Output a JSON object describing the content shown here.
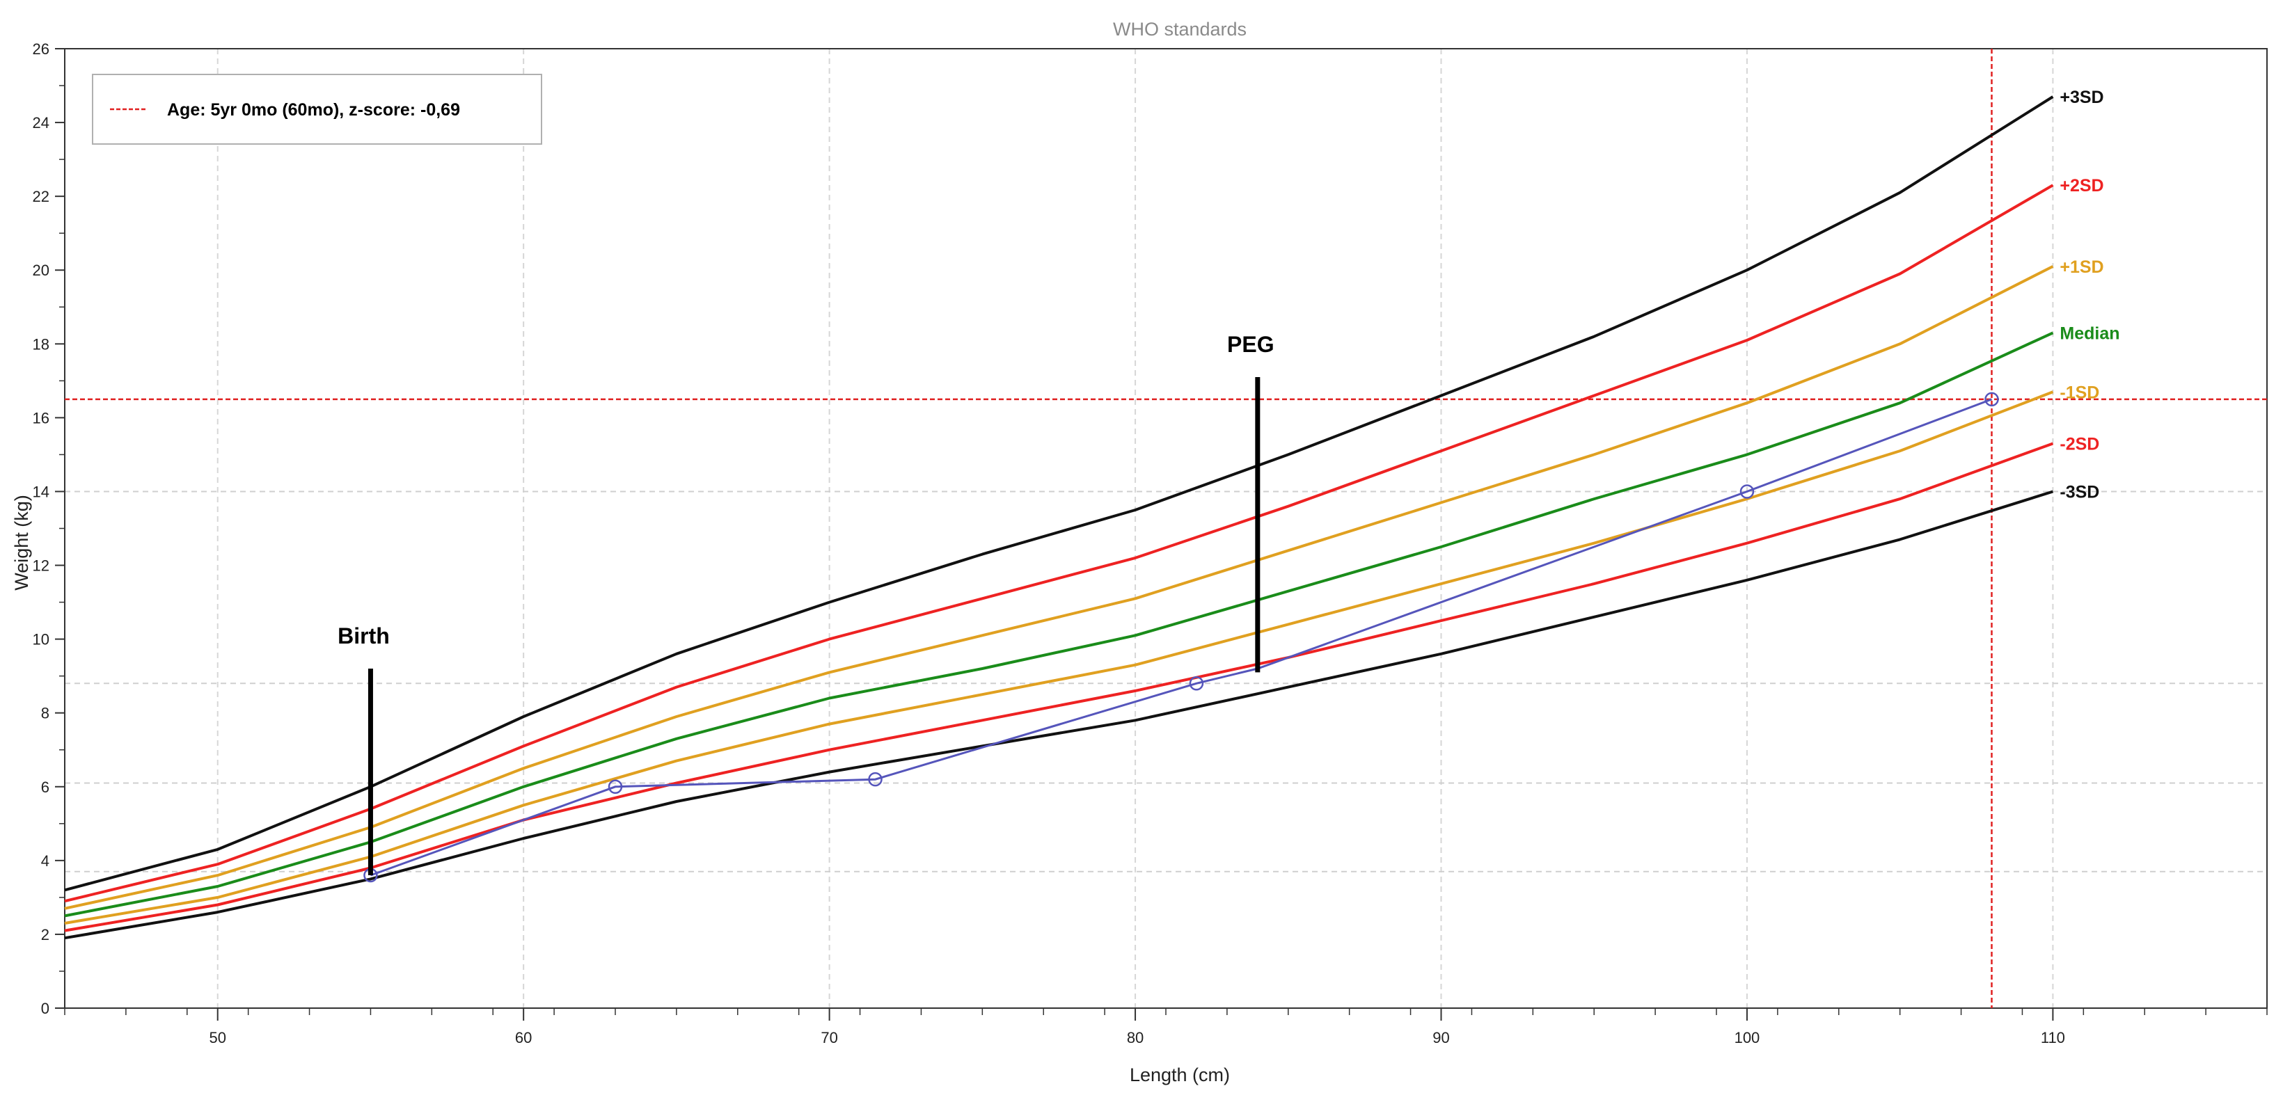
{
  "chart_data": {
    "type": "line",
    "title": "WHO standards",
    "xlabel": "Length (cm)",
    "ylabel": "Weight (kg)",
    "xlim": [
      45,
      117
    ],
    "ylim": [
      0,
      26
    ],
    "xticks": [
      50,
      60,
      70,
      80,
      90,
      100,
      110
    ],
    "yticks": [
      0,
      2,
      4,
      6,
      8,
      10,
      12,
      14,
      16,
      18,
      20,
      22,
      24,
      26
    ],
    "grid": true,
    "legend": {
      "position": "top-left",
      "entries": [
        {
          "label": "Age: 5yr 0mo (60mo), z-score: -0,69",
          "color": "#e02020",
          "style": "dashed"
        }
      ]
    },
    "reference_lines": [
      {
        "orientation": "vertical",
        "x": 108,
        "color": "#e02020"
      },
      {
        "orientation": "horizontal",
        "y": 16.5,
        "color": "#e02020"
      },
      {
        "orientation": "horizontal",
        "y": 3.7,
        "color": "#cccccc"
      },
      {
        "orientation": "horizontal",
        "y": 6.1,
        "color": "#cccccc"
      },
      {
        "orientation": "horizontal",
        "y": 8.8,
        "color": "#cccccc"
      },
      {
        "orientation": "horizontal",
        "y": 14.0,
        "color": "#cccccc"
      }
    ],
    "x": [
      45,
      50,
      55,
      60,
      65,
      70,
      75,
      80,
      85,
      90,
      95,
      100,
      105,
      110
    ],
    "series": [
      {
        "name": "+3SD",
        "color": "#111111",
        "values": [
          3.2,
          4.3,
          6.0,
          7.9,
          9.6,
          11.0,
          12.3,
          13.5,
          15.0,
          16.6,
          18.2,
          20.0,
          22.1,
          24.7
        ]
      },
      {
        "name": "+2SD",
        "color": "#ee2222",
        "values": [
          2.9,
          3.9,
          5.4,
          7.1,
          8.7,
          10.0,
          11.1,
          12.2,
          13.6,
          15.1,
          16.6,
          18.1,
          19.9,
          22.3
        ]
      },
      {
        "name": "+1SD",
        "color": "#e0a020",
        "values": [
          2.7,
          3.6,
          4.9,
          6.5,
          7.9,
          9.1,
          10.1,
          11.1,
          12.4,
          13.7,
          15.0,
          16.4,
          18.0,
          20.1
        ]
      },
      {
        "name": "Median",
        "color": "#1a8c1a",
        "values": [
          2.5,
          3.3,
          4.5,
          6.0,
          7.3,
          8.4,
          9.2,
          10.1,
          11.3,
          12.5,
          13.8,
          15.0,
          16.4,
          18.3
        ]
      },
      {
        "name": "-1SD",
        "color": "#e0a020",
        "values": [
          2.3,
          3.0,
          4.1,
          5.5,
          6.7,
          7.7,
          8.5,
          9.3,
          10.4,
          11.5,
          12.6,
          13.8,
          15.1,
          16.7
        ]
      },
      {
        "name": "-2SD",
        "color": "#ee2222",
        "values": [
          2.1,
          2.8,
          3.8,
          5.1,
          6.1,
          7.0,
          7.8,
          8.6,
          9.5,
          10.5,
          11.5,
          12.6,
          13.8,
          15.3
        ]
      },
      {
        "name": "-3SD",
        "color": "#111111",
        "values": [
          1.9,
          2.6,
          3.5,
          4.6,
          5.6,
          6.4,
          7.1,
          7.8,
          8.7,
          9.6,
          10.6,
          11.6,
          12.7,
          14.0
        ]
      }
    ],
    "patient": {
      "color": "#5555bb",
      "x": [
        55,
        63,
        71.5,
        82,
        84,
        100,
        108
      ],
      "y": [
        3.6,
        6.0,
        6.2,
        8.8,
        9.2,
        14.0,
        16.5
      ],
      "markers": [
        true,
        true,
        true,
        true,
        false,
        true,
        true
      ]
    },
    "annotations": [
      {
        "label": "Birth",
        "x": 55,
        "y_from": 3.6,
        "y_to": 9.2
      },
      {
        "label": "PEG",
        "x": 84,
        "y_from": 9.1,
        "y_to": 17.1
      }
    ]
  }
}
